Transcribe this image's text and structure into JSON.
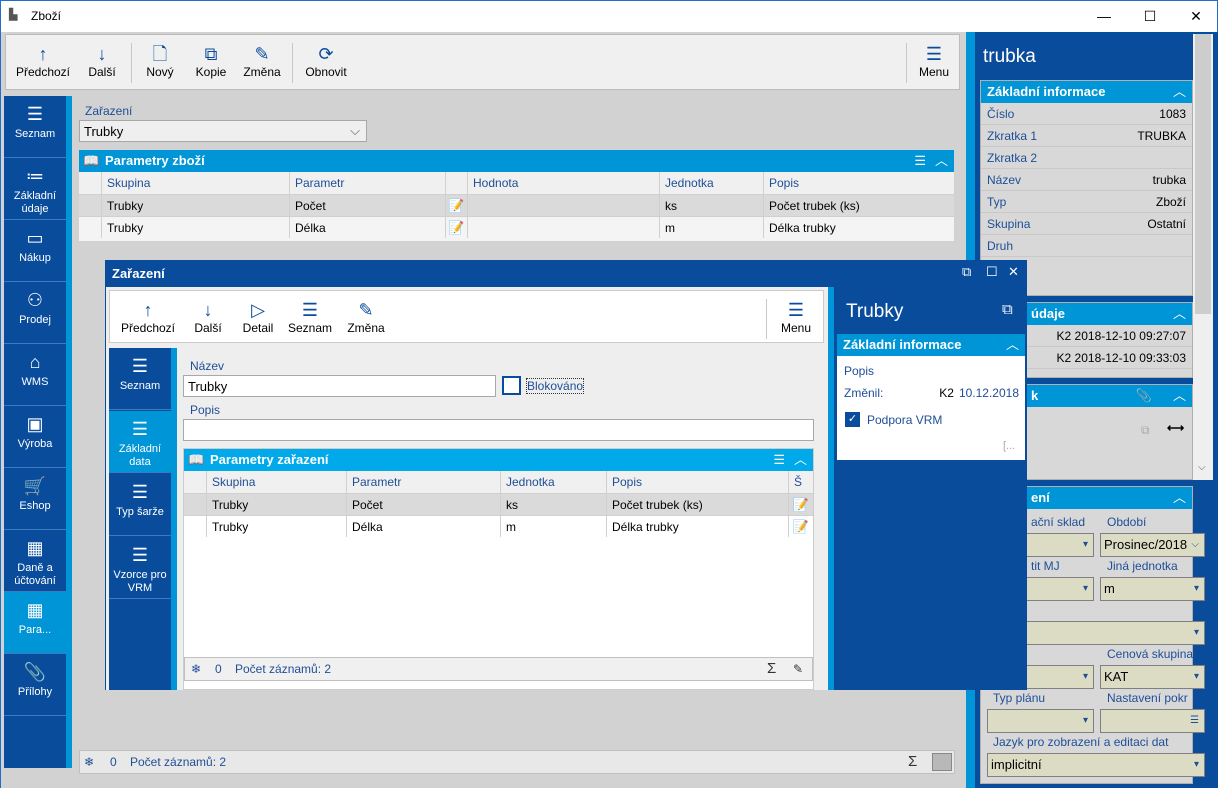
{
  "window": {
    "title": "Zboží",
    "minimize": "—",
    "maximize": "☐",
    "close": "✕"
  },
  "toolbar": [
    {
      "label": "Předchozí",
      "icon": "↑"
    },
    {
      "label": "Další",
      "icon": "↓"
    },
    {
      "label": "Nový",
      "icon": "🗋"
    },
    {
      "label": "Kopie",
      "icon": "⧉"
    },
    {
      "label": "Změna",
      "icon": "✎"
    },
    {
      "label": "Obnovit",
      "icon": "⟳"
    },
    {
      "label": "Menu",
      "icon": "☰"
    }
  ],
  "nav": [
    {
      "label": "Seznam",
      "icon": "☰"
    },
    {
      "label": "Základní údaje",
      "icon": "≔"
    },
    {
      "label": "Nákup",
      "icon": "▭"
    },
    {
      "label": "Prodej",
      "icon": "⚇"
    },
    {
      "label": "WMS",
      "icon": "⌂"
    },
    {
      "label": "Výroba",
      "icon": "▣"
    },
    {
      "label": "Eshop",
      "icon": "🛒"
    },
    {
      "label": "Daně a účtování",
      "icon": "▦"
    },
    {
      "label": "Para...",
      "icon": "▦"
    },
    {
      "label": "Přílohy",
      "icon": "📎"
    }
  ],
  "main": {
    "zarazeni_label": "Zařazení",
    "zarazeni_value": "Trubky",
    "grid": {
      "title": "Parametry zboží",
      "columns": [
        "Skupina",
        "Parametr",
        "",
        "Hodnota",
        "Jednotka",
        "Popis"
      ],
      "rows": [
        [
          "Trubky",
          "Počet",
          "",
          "",
          "ks",
          "Počet trubek (ks)"
        ],
        [
          "Trubky",
          "Délka",
          "",
          "",
          "m",
          "Délka trubky"
        ]
      ]
    },
    "status": {
      "count": "0",
      "records": "Počet záznamů: 2"
    }
  },
  "right": {
    "title": "trubka",
    "basic": {
      "header": "Základní informace",
      "rows": [
        [
          "Číslo",
          "1083"
        ],
        [
          "Zkratka 1",
          "TRUBKA"
        ],
        [
          "Zkratka 2",
          ""
        ],
        [
          "Název",
          "trubka"
        ],
        [
          "Typ",
          "Zboží"
        ],
        [
          "Skupina",
          "Ostatní"
        ],
        [
          "Druh",
          ""
        ]
      ]
    },
    "other": {
      "header": "údaje",
      "rows": [
        "K2 2018-12-10 09:27:07",
        "K2 2018-12-10 09:33:03"
      ]
    },
    "third": {
      "header": "k"
    },
    "fourth": {
      "header": "ení",
      "f1": "ační sklad",
      "f2": "Období",
      "f2v": "Prosinec/2018",
      "f3": "tit MJ",
      "f4": "Jiná jednotka",
      "f4v": "m",
      "f6": "Cenová skupina",
      "f6v": "KAT",
      "f7": "Typ plánu",
      "f8": "Nastavení pokr",
      "f9": "Jazyk pro zobrazení a editaci dat",
      "f9v": "implicitní"
    }
  },
  "dialog": {
    "title": "Zařazení",
    "toolbar": [
      {
        "label": "Předchozí",
        "icon": "↑"
      },
      {
        "label": "Další",
        "icon": "↓"
      },
      {
        "label": "Detail",
        "icon": "▷"
      },
      {
        "label": "Seznam",
        "icon": "☰"
      },
      {
        "label": "Změna",
        "icon": "✎"
      },
      {
        "label": "Menu",
        "icon": "☰"
      }
    ],
    "nav": [
      {
        "label": "Seznam"
      },
      {
        "label": "Základní data"
      },
      {
        "label": "Typ šarže"
      },
      {
        "label": "Vzorce pro VRM"
      }
    ],
    "nazev_label": "Název",
    "nazev_value": "Trubky",
    "blokovano": "Blokováno",
    "popis_label": "Popis",
    "grid": {
      "title": "Parametry zařazení",
      "columns": [
        "Skupina",
        "Parametr",
        "Jednotka",
        "Popis",
        "Š"
      ],
      "rows": [
        [
          "Trubky",
          "Počet",
          "ks",
          "Počet trubek (ks)"
        ],
        [
          "Trubky",
          "Délka",
          "m",
          "Délka trubky"
        ]
      ]
    },
    "status": {
      "count": "0",
      "records": "Počet záznamů: 2"
    },
    "side": {
      "title": "Trubky",
      "header": "Základní informace",
      "popis": "Popis",
      "zmenil": "Změnil:",
      "user": "K2",
      "date": "10.12.2018",
      "vrm": "Podpora VRM",
      "more": "[..."
    }
  }
}
